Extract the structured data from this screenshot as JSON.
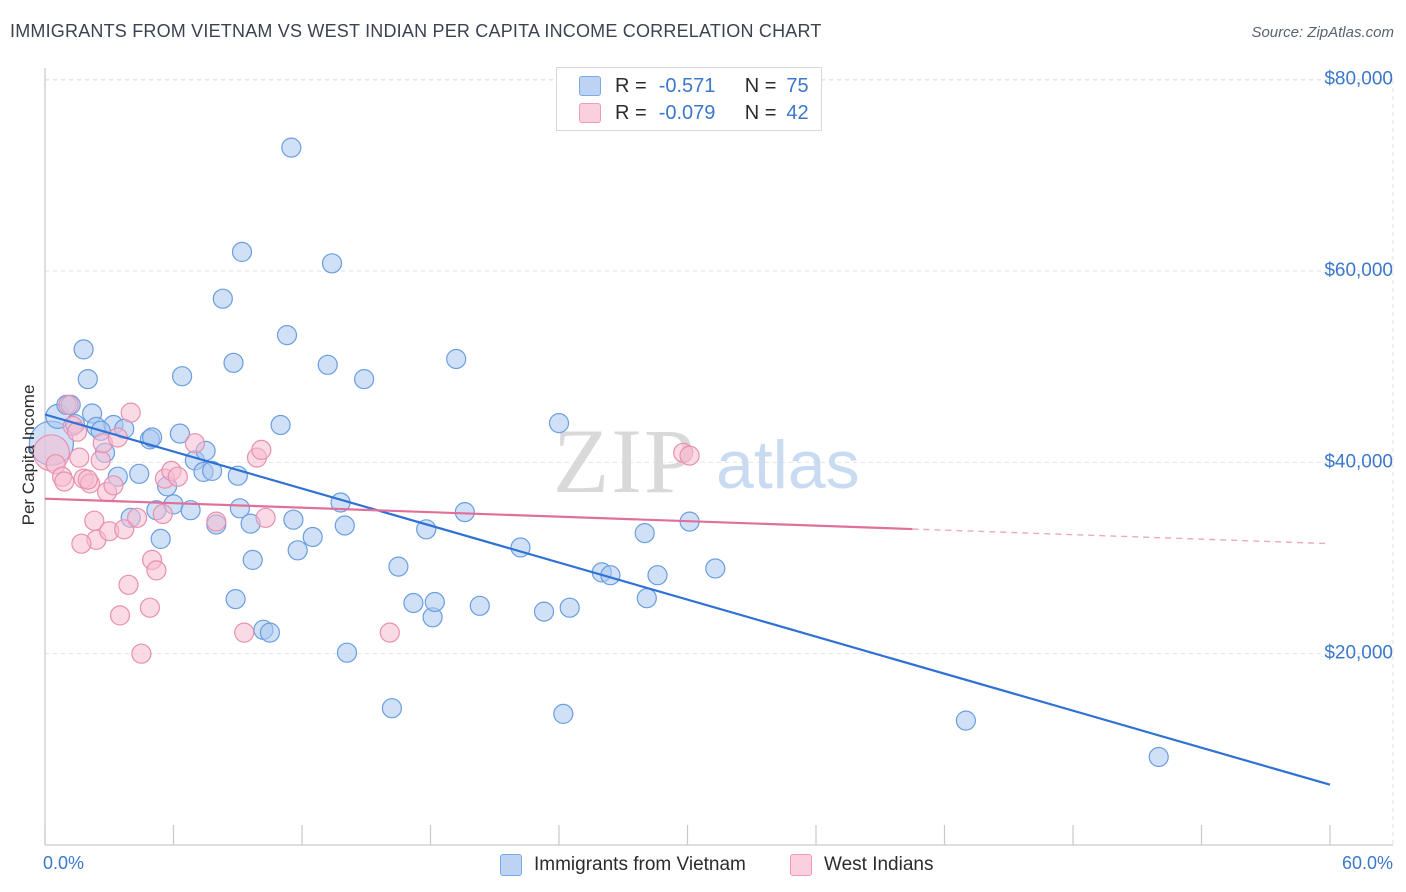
{
  "header": {
    "title": "IMMIGRANTS FROM VIETNAM VS WEST INDIAN PER CAPITA INCOME CORRELATION CHART",
    "source": "Source: ZipAtlas.com"
  },
  "watermark": {
    "zip": "ZIP",
    "atlas": "atlas"
  },
  "legend": {
    "series": [
      {
        "r_label": "R =",
        "r_value": "-0.571",
        "n_label": "N =",
        "n_value": "75"
      },
      {
        "r_label": "R =",
        "r_value": "-0.079",
        "n_label": "N =",
        "n_value": "42"
      }
    ]
  },
  "bottom_legend": {
    "vietnam": "Immigrants from Vietnam",
    "westindian": "West Indians"
  },
  "colors": {
    "vietnam_fill": "#a9c8f0",
    "vietnam_stroke": "#6a9ee0",
    "vietnam_line": "#2f72d4",
    "westindian_fill": "#f6bcd0",
    "westindian_stroke": "#e890b0",
    "westindian_line": "#e0709a",
    "tick_text": "#3b78cc",
    "grid": "#e2e2e2"
  },
  "chart_data": {
    "type": "scatter",
    "title": "IMMIGRANTS FROM VIETNAM VS WEST INDIAN PER CAPITA INCOME CORRELATION CHART",
    "xlabel": "",
    "ylabel": "Per Capita Income",
    "xlim": [
      0,
      60
    ],
    "ylim": [
      0,
      82000
    ],
    "x_tick_labels": [
      "0.0%",
      "60.0%"
    ],
    "y_ticks": [
      20000,
      40000,
      60000,
      80000
    ],
    "y_tick_labels": [
      "$20,000",
      "$40,000",
      "$60,000",
      "$80,000"
    ],
    "grid": true,
    "legend_position": "top-center",
    "series": [
      {
        "name": "Immigrants from Vietnam",
        "r": -0.571,
        "n": 75,
        "trend": {
          "x": [
            0,
            60
          ],
          "y": [
            45000,
            6300
          ],
          "dashed_from_x": null
        },
        "points": [
          [
            0.3,
            42000,
            22
          ],
          [
            0.6,
            44800,
            12
          ],
          [
            1.0,
            46000,
            10
          ],
          [
            1.2,
            46000,
            10
          ],
          [
            1.8,
            51800,
            10
          ],
          [
            2.0,
            48700,
            10
          ],
          [
            2.2,
            45100,
            10
          ],
          [
            2.4,
            43700,
            10
          ],
          [
            2.8,
            41000,
            10
          ],
          [
            3.2,
            43900,
            10
          ],
          [
            3.4,
            38500,
            10
          ],
          [
            3.7,
            43500,
            10
          ],
          [
            4.0,
            34200,
            10
          ],
          [
            4.4,
            38800,
            10
          ],
          [
            4.9,
            42400,
            10
          ],
          [
            5.2,
            35000,
            10
          ],
          [
            5.4,
            32000,
            10
          ],
          [
            5.7,
            37500,
            10
          ],
          [
            6.0,
            35600,
            10
          ],
          [
            6.3,
            43000,
            10
          ],
          [
            6.4,
            49000,
            10
          ],
          [
            6.8,
            35000,
            10
          ],
          [
            7.0,
            40200,
            10
          ],
          [
            7.4,
            39000,
            10
          ],
          [
            7.5,
            41200,
            10
          ],
          [
            7.8,
            39100,
            10
          ],
          [
            8.0,
            33500,
            10
          ],
          [
            8.3,
            57100,
            10
          ],
          [
            8.8,
            50400,
            10
          ],
          [
            8.9,
            25700,
            10
          ],
          [
            9.1,
            35200,
            10
          ],
          [
            9.2,
            62000,
            10
          ],
          [
            9.6,
            33600,
            10
          ],
          [
            9.7,
            29800,
            10
          ],
          [
            10.2,
            22500,
            10
          ],
          [
            10.5,
            22200,
            10
          ],
          [
            11.0,
            43900,
            10
          ],
          [
            11.3,
            53300,
            10
          ],
          [
            11.5,
            72900,
            10
          ],
          [
            11.6,
            34000,
            10
          ],
          [
            11.8,
            30800,
            10
          ],
          [
            12.5,
            32200,
            10
          ],
          [
            13.2,
            50200,
            10
          ],
          [
            13.4,
            60800,
            10
          ],
          [
            13.8,
            35800,
            10
          ],
          [
            14.0,
            33400,
            10
          ],
          [
            14.1,
            20100,
            10
          ],
          [
            14.9,
            48700,
            10
          ],
          [
            16.2,
            14300,
            10
          ],
          [
            16.5,
            29100,
            10
          ],
          [
            17.2,
            25300,
            10
          ],
          [
            17.8,
            33000,
            10
          ],
          [
            18.1,
            23800,
            10
          ],
          [
            18.2,
            25400,
            10
          ],
          [
            19.2,
            50800,
            10
          ],
          [
            19.6,
            34800,
            10
          ],
          [
            20.3,
            25000,
            10
          ],
          [
            22.2,
            31100,
            10
          ],
          [
            23.3,
            24400,
            10
          ],
          [
            24.0,
            44100,
            10
          ],
          [
            24.2,
            13700,
            10
          ],
          [
            24.5,
            24800,
            10
          ],
          [
            26.0,
            28500,
            10
          ],
          [
            26.4,
            28200,
            10
          ],
          [
            28.0,
            32600,
            10
          ],
          [
            28.1,
            25800,
            10
          ],
          [
            28.6,
            28200,
            10
          ],
          [
            30.1,
            33800,
            10
          ],
          [
            31.3,
            28900,
            10
          ],
          [
            43.0,
            13000,
            10
          ],
          [
            52.0,
            9200,
            10
          ],
          [
            5.0,
            42600,
            10
          ],
          [
            1.4,
            44000,
            10
          ],
          [
            2.6,
            43300,
            10
          ],
          [
            9.0,
            38600,
            10
          ]
        ]
      },
      {
        "name": "West Indians",
        "r": -0.079,
        "n": 42,
        "trend": {
          "x": [
            0,
            60
          ],
          "y": [
            36200,
            31500
          ],
          "dashed_from_x": 40.5
        },
        "points": [
          [
            0.3,
            41000,
            18
          ],
          [
            0.5,
            39800,
            10
          ],
          [
            0.8,
            38500,
            10
          ],
          [
            1.1,
            46000,
            10
          ],
          [
            1.3,
            43800,
            10
          ],
          [
            1.5,
            43200,
            10
          ],
          [
            1.6,
            40500,
            10
          ],
          [
            1.8,
            38300,
            10
          ],
          [
            2.1,
            37800,
            10
          ],
          [
            2.3,
            33900,
            10
          ],
          [
            2.4,
            31900,
            10
          ],
          [
            2.6,
            40200,
            10
          ],
          [
            2.7,
            42000,
            10
          ],
          [
            2.9,
            36900,
            10
          ],
          [
            3.0,
            32800,
            10
          ],
          [
            3.2,
            37600,
            10
          ],
          [
            3.4,
            42600,
            10
          ],
          [
            3.5,
            24000,
            10
          ],
          [
            3.7,
            33000,
            10
          ],
          [
            3.9,
            27200,
            10
          ],
          [
            4.0,
            45200,
            10
          ],
          [
            4.3,
            34200,
            10
          ],
          [
            4.5,
            20000,
            10
          ],
          [
            4.9,
            24800,
            10
          ],
          [
            5.0,
            29800,
            10
          ],
          [
            5.2,
            28700,
            10
          ],
          [
            5.5,
            34600,
            10
          ],
          [
            5.6,
            38300,
            10
          ],
          [
            5.9,
            39100,
            10
          ],
          [
            6.2,
            38500,
            10
          ],
          [
            7.0,
            42000,
            10
          ],
          [
            8.0,
            33800,
            10
          ],
          [
            9.3,
            22200,
            10
          ],
          [
            9.9,
            40500,
            10
          ],
          [
            10.1,
            41300,
            10
          ],
          [
            10.3,
            34200,
            10
          ],
          [
            16.1,
            22200,
            10
          ],
          [
            29.8,
            41000,
            10
          ],
          [
            30.1,
            40700,
            10
          ],
          [
            1.7,
            31500,
            10
          ],
          [
            0.9,
            38000,
            10
          ],
          [
            2.0,
            38200,
            10
          ]
        ]
      }
    ]
  }
}
